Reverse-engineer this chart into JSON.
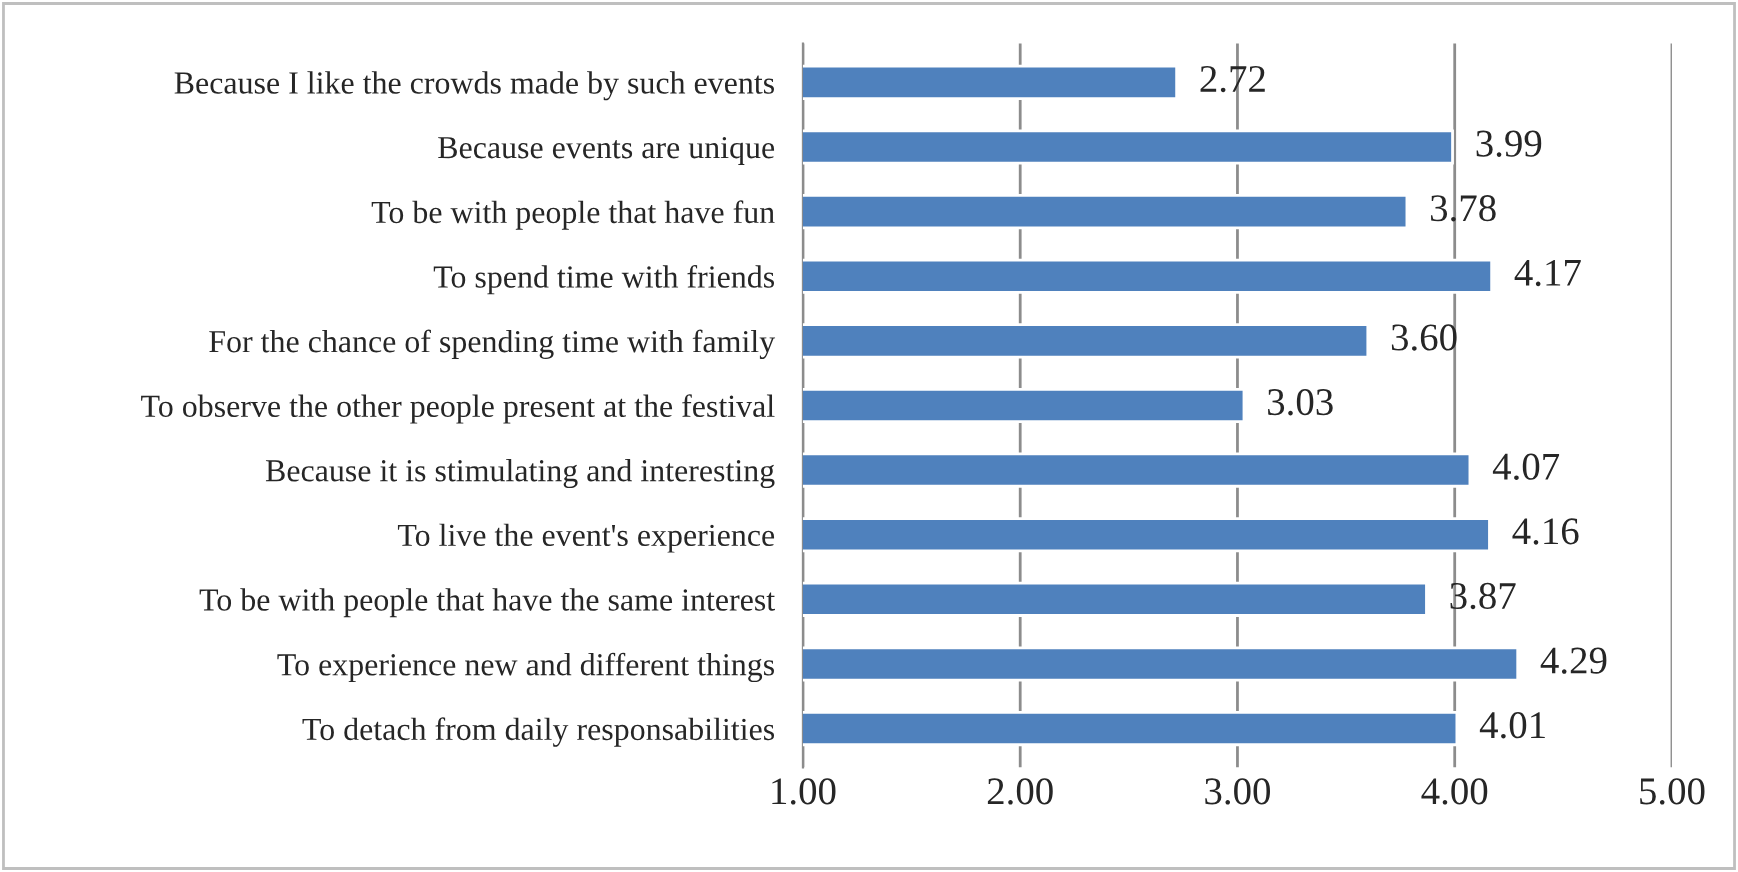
{
  "chart_data": {
    "type": "bar",
    "orientation": "horizontal",
    "categories": [
      "Because I like the crowds made by such events",
      "Because events are unique",
      "To be with people that have fun",
      "To spend time with friends",
      "For the chance of spending time with family",
      "To observe the other people present at the festival",
      "Because it is stimulating and interesting",
      "To live the event's experience",
      "To be with people that have the same interest",
      "To experience new and different things",
      "To detach from daily responsabilities"
    ],
    "values": [
      2.72,
      3.99,
      3.78,
      4.17,
      3.6,
      3.03,
      4.07,
      4.16,
      3.87,
      4.29,
      4.01
    ],
    "value_labels": [
      "2.72",
      "3.99",
      "3.78",
      "4.17",
      "3.60",
      "3.03",
      "4.07",
      "4.16",
      "3.87",
      "4.29",
      "4.01"
    ],
    "color": "#4f81bd",
    "xlim": [
      1,
      5
    ],
    "xticks": [
      {
        "value": 1,
        "label": "1.00"
      },
      {
        "value": 2,
        "label": "2.00"
      },
      {
        "value": 3,
        "label": "3.00"
      },
      {
        "value": 4,
        "label": "4.00"
      },
      {
        "value": 5,
        "label": "5.00"
      }
    ],
    "grid": "x",
    "legend": false
  }
}
